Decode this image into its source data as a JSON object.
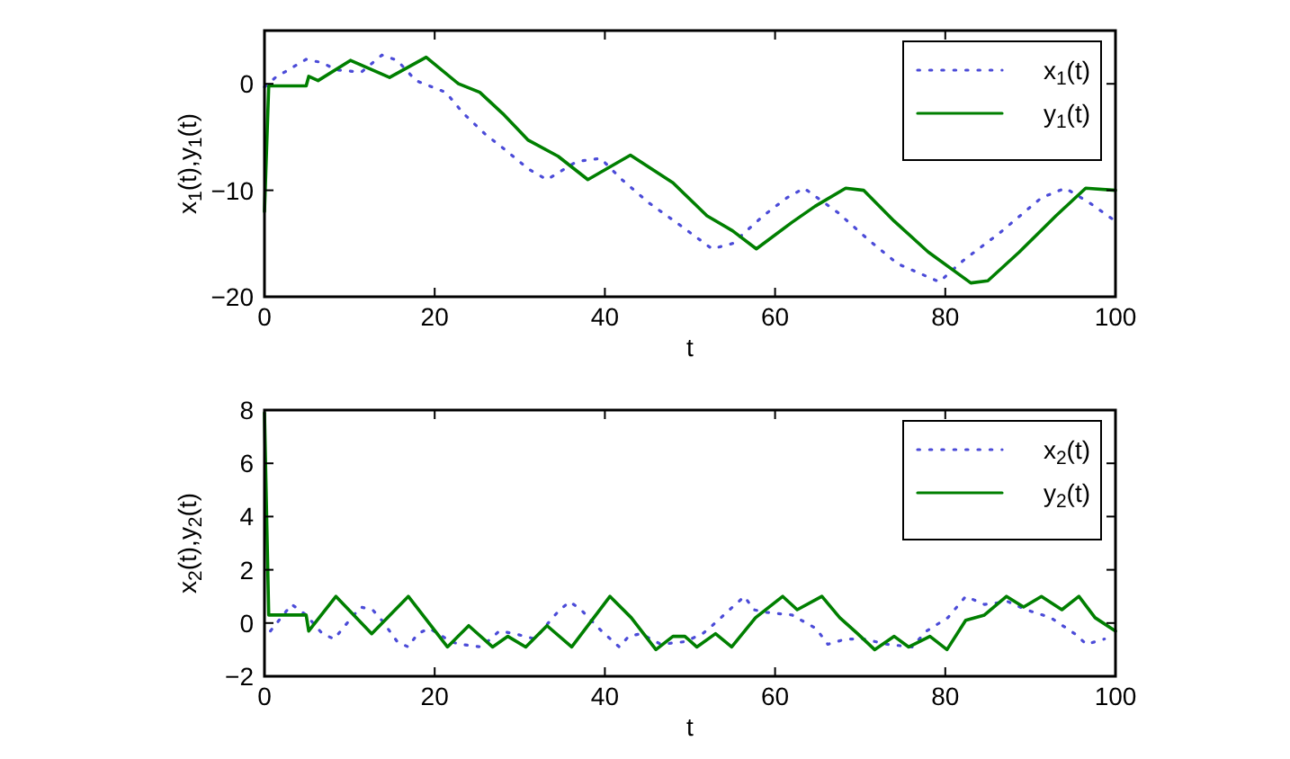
{
  "chart_data": [
    {
      "type": "line",
      "xlabel": "t",
      "ylabel": "x$_{1}$(t),y$_{1}$(t)",
      "xlim": [
        0,
        100
      ],
      "ylim": [
        -20,
        5
      ],
      "xticks": [
        0,
        20,
        40,
        60,
        80,
        100
      ],
      "yticks": [
        -20,
        -10,
        0
      ],
      "legend": "top right",
      "grid": false,
      "series": [
        {
          "name": "x$_{1}$(t)",
          "color": "#4b4bd8",
          "line_style": "dotted",
          "x": [
            0,
            1.3,
            4.9,
            6.7,
            8.5,
            11.4,
            13.8,
            15.6,
            17.8,
            21.3,
            23.4,
            25.9,
            28.3,
            31,
            33.2,
            36.7,
            39.5,
            42,
            45.2,
            48.7,
            52.6,
            55,
            58.6,
            61.4,
            63.4,
            67.4,
            70.9,
            74.4,
            79.3,
            82.1,
            86.4,
            91.3,
            94.1,
            97,
            100
          ],
          "values": [
            -0.3,
            0.6,
            2.3,
            2,
            1.3,
            1.1,
            2.7,
            2.2,
            0.3,
            -0.8,
            -2.8,
            -4.7,
            -6.2,
            -8,
            -9,
            -7.3,
            -7,
            -9,
            -11.2,
            -13.2,
            -15.5,
            -15,
            -12.4,
            -10.7,
            -9.8,
            -12.1,
            -14.6,
            -16.9,
            -18.6,
            -16.6,
            -14,
            -10.7,
            -9.8,
            -11.2,
            -12.9
          ]
        },
        {
          "name": "y$_{1}$(t)",
          "color": "#007f00",
          "line_style": "solid",
          "x": [
            0,
            0.5,
            4.9,
            5.2,
            6.3,
            10.1,
            14.7,
            19,
            22.8,
            25.3,
            28,
            31,
            34.5,
            38,
            43,
            48,
            52,
            55,
            57.8,
            62,
            64.7,
            68.3,
            70.4,
            74,
            78,
            83,
            85,
            88.7,
            93,
            96.5,
            100
          ],
          "values": [
            -12,
            -0.2,
            -0.2,
            0.7,
            0.3,
            2.2,
            0.6,
            2.5,
            0,
            -0.8,
            -2.8,
            -5.3,
            -6.8,
            -9,
            -6.7,
            -9.3,
            -12.4,
            -13.8,
            -15.5,
            -13,
            -11.5,
            -9.8,
            -10,
            -12.9,
            -15.8,
            -18.7,
            -18.5,
            -15.8,
            -12.4,
            -9.8,
            -10
          ]
        }
      ]
    },
    {
      "type": "line",
      "xlabel": "t",
      "ylabel": "x$_{2}$(t),y$_{2}$(t)",
      "xlim": [
        0,
        100
      ],
      "ylim": [
        -2,
        8
      ],
      "xticks": [
        0,
        20,
        40,
        60,
        80,
        100
      ],
      "yticks": [
        -2,
        0,
        2,
        4,
        6,
        8
      ],
      "legend": "top right",
      "grid": false,
      "series": [
        {
          "name": "x$_{2}$(t)",
          "color": "#4b4bd8",
          "line_style": "dotted",
          "x": [
            0.7,
            3.2,
            4.9,
            6.8,
            8.2,
            9.2,
            11.3,
            12.7,
            13.8,
            15.6,
            16.9,
            18,
            19.4,
            21.9,
            23,
            25.5,
            27.6,
            29.4,
            31.8,
            33.6,
            34.7,
            35.9,
            37.2,
            39.6,
            41.7,
            42.8,
            44.2,
            46.6,
            49.4,
            51.5,
            52.6,
            55,
            56.4,
            57.5,
            59,
            62,
            64.8,
            66.2,
            68.3,
            70.4,
            73.2,
            76.1,
            77.8,
            80.3,
            82.4,
            84.6,
            87.4,
            89.5,
            92.4,
            95.2,
            96.6,
            98.7
          ],
          "values": [
            -0.3,
            0.7,
            0.3,
            -0.4,
            -0.6,
            -0.2,
            0.6,
            0.5,
            0.1,
            -0.7,
            -0.9,
            -0.4,
            -0.2,
            -0.7,
            -0.8,
            -0.9,
            -0.3,
            -0.4,
            -0.6,
            0.1,
            0.5,
            0.8,
            0.5,
            -0.3,
            -0.9,
            -0.5,
            -0.4,
            -0.8,
            -0.7,
            -0.4,
            -0.1,
            0.6,
            1,
            0.5,
            0.4,
            0.3,
            -0.2,
            -0.8,
            -0.6,
            -0.6,
            -0.8,
            -0.9,
            -0.3,
            0.2,
            1,
            0.7,
            0.8,
            0.5,
            0.2,
            -0.4,
            -0.8,
            -0.6
          ]
        },
        {
          "name": "y$_{2}$(t)",
          "color": "#007f00",
          "line_style": "solid",
          "x": [
            0,
            0.5,
            4.9,
            5.2,
            8.4,
            12.6,
            16.9,
            21.5,
            24,
            26.8,
            28.6,
            30.7,
            33.2,
            36.1,
            40.6,
            43.1,
            46,
            48,
            49.4,
            50.8,
            53,
            54.9,
            57.7,
            60.9,
            62.6,
            65.5,
            67.6,
            69.7,
            71.7,
            74,
            75.7,
            78.2,
            80.2,
            82.4,
            84.6,
            87.2,
            89.2,
            91.3,
            93.7,
            95.7,
            97.6,
            100
          ],
          "values": [
            7.9,
            0.3,
            0.3,
            -0.3,
            1,
            -0.4,
            1,
            -0.9,
            -0.1,
            -0.9,
            -0.5,
            -0.9,
            -0.1,
            -0.9,
            1,
            0.2,
            -1,
            -0.5,
            -0.5,
            -0.9,
            -0.4,
            -0.9,
            0.2,
            1,
            0.5,
            1,
            0.2,
            -0.4,
            -1,
            -0.5,
            -0.9,
            -0.5,
            -1,
            0.1,
            0.3,
            1,
            0.6,
            1,
            0.5,
            1,
            0.2,
            -0.3
          ]
        }
      ]
    }
  ]
}
